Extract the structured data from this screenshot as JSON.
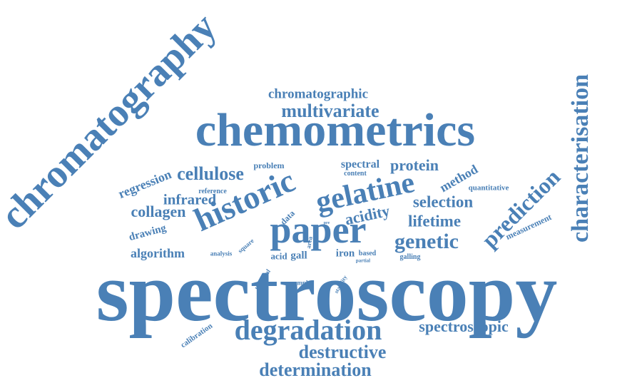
{
  "color": "#4a80b6",
  "words": [
    {
      "text": "spectroscopy",
      "rotation": 0
    },
    {
      "text": "chemometrics",
      "rotation": 0
    },
    {
      "text": "chromatography",
      "rotation": -45
    },
    {
      "text": "paper",
      "rotation": 0
    },
    {
      "text": "historic",
      "rotation": -24
    },
    {
      "text": "gelatine",
      "rotation": -12
    },
    {
      "text": "degradation",
      "rotation": 0
    },
    {
      "text": "characterisation",
      "rotation": -90
    },
    {
      "text": "multivariate",
      "rotation": 0
    },
    {
      "text": "cellulose",
      "rotation": 0
    },
    {
      "text": "prediction",
      "rotation": -45
    },
    {
      "text": "destructive",
      "rotation": 0
    },
    {
      "text": "determination",
      "rotation": 0
    },
    {
      "text": "genetic",
      "rotation": 0
    },
    {
      "text": "chromatographic",
      "rotation": 0
    },
    {
      "text": "selection",
      "rotation": 0
    },
    {
      "text": "lifetime",
      "rotation": 0
    },
    {
      "text": "protein",
      "rotation": 0
    },
    {
      "text": "spectroscopic",
      "rotation": 0
    },
    {
      "text": "collagen",
      "rotation": 0
    },
    {
      "text": "infrared",
      "rotation": 0
    },
    {
      "text": "acidity",
      "rotation": -12
    },
    {
      "text": "regression",
      "rotation": -22
    },
    {
      "text": "algorithm",
      "rotation": 0
    },
    {
      "text": "method",
      "rotation": -30
    },
    {
      "text": "drawing",
      "rotation": -15
    },
    {
      "text": "spectral",
      "rotation": 0
    },
    {
      "text": "measurement",
      "rotation": -25
    },
    {
      "text": "gall",
      "rotation": 0
    },
    {
      "text": "iron",
      "rotation": 0
    },
    {
      "text": "acid",
      "rotation": 0
    },
    {
      "text": "data",
      "rotation": -45
    },
    {
      "text": "problem",
      "rotation": 0
    },
    {
      "text": "calibration",
      "rotation": -35
    },
    {
      "text": "quantitative",
      "rotation": 0
    },
    {
      "text": "reference",
      "rotation": 0
    },
    {
      "text": "content",
      "rotation": 0
    },
    {
      "text": "analysis",
      "rotation": 0
    },
    {
      "text": "square",
      "rotation": -40
    },
    {
      "text": "area",
      "rotation": -80
    },
    {
      "text": "pre",
      "rotation": 0
    },
    {
      "text": "based",
      "rotation": 0
    },
    {
      "text": "partial",
      "rotation": 0
    },
    {
      "text": "galling",
      "rotation": 0
    },
    {
      "text": "material",
      "rotation": -55
    },
    {
      "text": "sample",
      "rotation": 0
    },
    {
      "text": "stability",
      "rotation": -60
    }
  ]
}
